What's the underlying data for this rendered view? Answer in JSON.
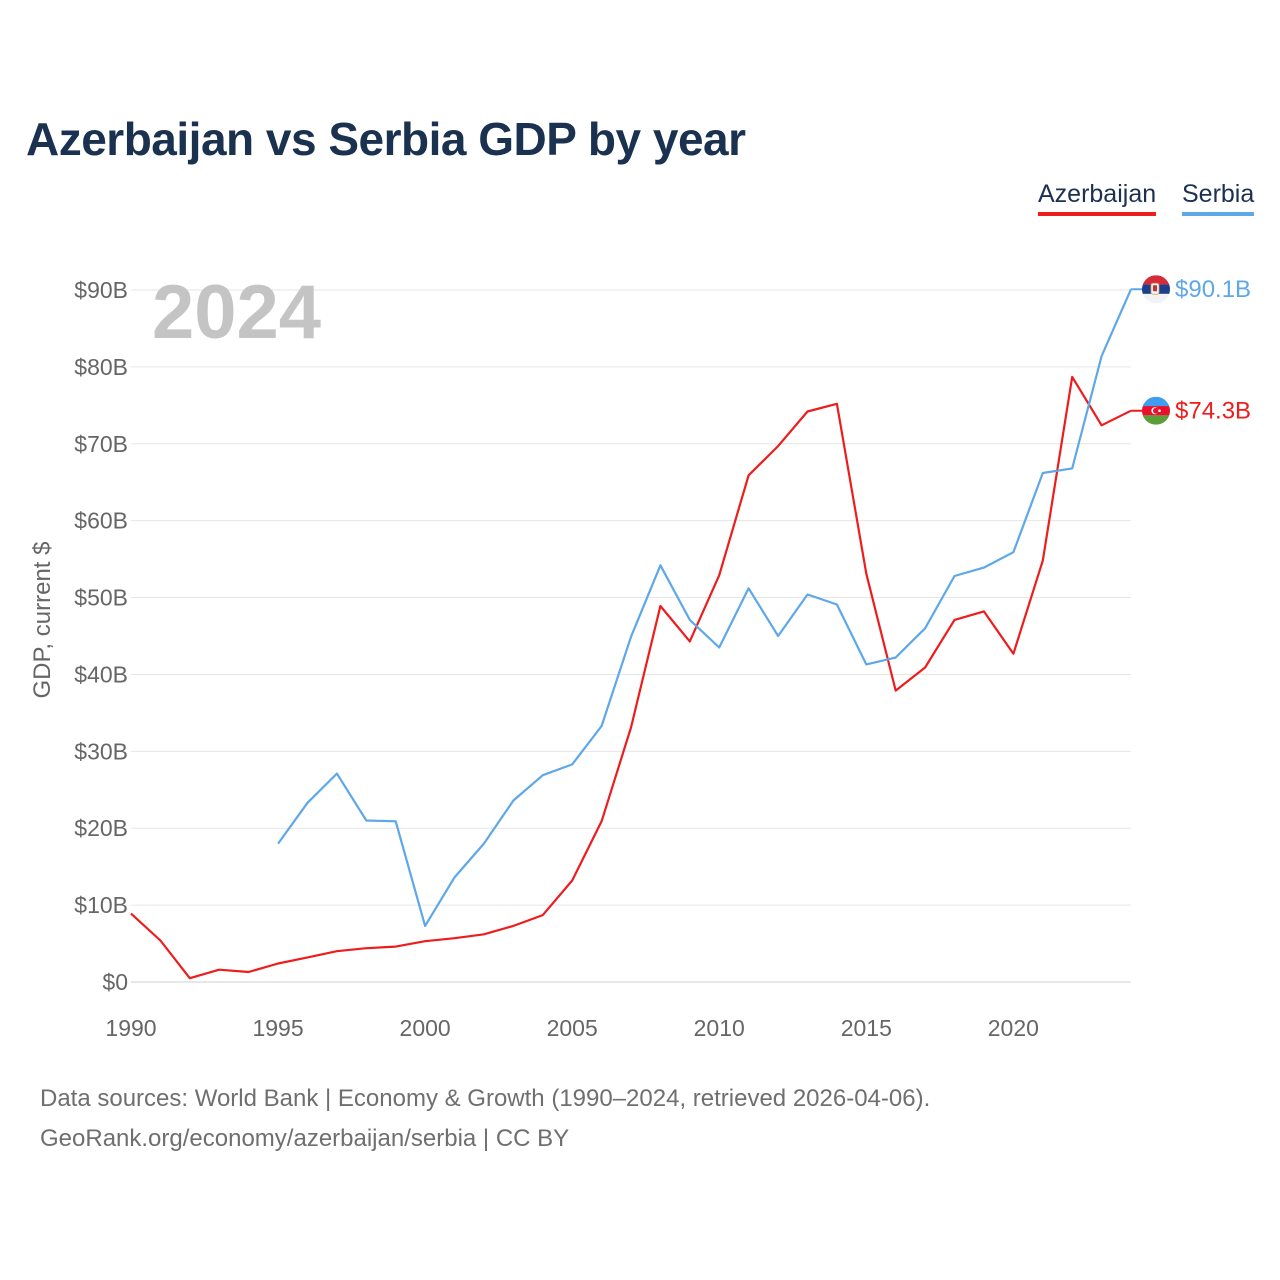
{
  "chart_data": {
    "type": "line",
    "title": "Azerbaijan vs Serbia GDP by year",
    "ylabel": "GDP, current $",
    "xlabel": "",
    "year_watermark": "2024",
    "x_ticks": [
      1990,
      1995,
      2000,
      2005,
      2010,
      2015,
      2020
    ],
    "x_tick_labels": [
      "1990",
      "1995",
      "2000",
      "2005",
      "2010",
      "2015",
      "2020"
    ],
    "y_ticks": [
      0,
      10,
      20,
      30,
      40,
      50,
      60,
      70,
      80,
      90
    ],
    "y_tick_labels": [
      "$0",
      "$10B",
      "$20B",
      "$30B",
      "$40B",
      "$50B",
      "$60B",
      "$70B",
      "$80B",
      "$90B"
    ],
    "xlim": [
      1990,
      2024
    ],
    "ylim": [
      0,
      90
    ],
    "series": [
      {
        "name": "Azerbaijan",
        "color": "#ee1c1c",
        "end_label": "$74.3B",
        "flag": "azerbaijan-flag",
        "x": [
          1990,
          1991,
          1992,
          1993,
          1994,
          1995,
          1996,
          1997,
          1998,
          1999,
          2000,
          2001,
          2002,
          2003,
          2004,
          2005,
          2006,
          2007,
          2008,
          2009,
          2010,
          2011,
          2012,
          2013,
          2014,
          2015,
          2016,
          2017,
          2018,
          2019,
          2020,
          2021,
          2022,
          2023,
          2024
        ],
        "values": [
          8.9,
          5.4,
          0.5,
          1.6,
          1.3,
          2.4,
          3.2,
          4.0,
          4.4,
          4.6,
          5.3,
          5.7,
          6.2,
          7.3,
          8.7,
          13.2,
          20.9,
          33.1,
          48.9,
          44.3,
          52.9,
          65.9,
          69.7,
          74.2,
          75.2,
          53.1,
          37.9,
          40.9,
          47.1,
          48.2,
          42.7,
          54.8,
          78.7,
          72.4,
          74.3
        ]
      },
      {
        "name": "Serbia",
        "color": "#5ea7e8",
        "end_label": "$90.1B",
        "flag": "serbia-flag",
        "x": [
          1995,
          1996,
          1997,
          1998,
          1999,
          2000,
          2001,
          2002,
          2003,
          2004,
          2005,
          2006,
          2007,
          2008,
          2009,
          2010,
          2011,
          2012,
          2013,
          2014,
          2015,
          2016,
          2017,
          2018,
          2019,
          2020,
          2021,
          2022,
          2023,
          2024
        ],
        "values": [
          18.0,
          23.3,
          27.1,
          21.0,
          20.9,
          7.3,
          13.6,
          18.0,
          23.6,
          26.9,
          28.3,
          33.3,
          44.9,
          54.2,
          47.1,
          43.5,
          51.2,
          45.0,
          50.4,
          49.1,
          41.3,
          42.2,
          46.0,
          52.8,
          53.9,
          55.9,
          66.2,
          66.8,
          81.4,
          90.1
        ]
      }
    ]
  },
  "legend": {
    "azerbaijan": "Azerbaijan",
    "serbia": "Serbia"
  },
  "source": {
    "line1": "Data sources: World Bank | Economy & Growth (1990–2024, retrieved 2026-04-06).",
    "line2": "GeoRank.org/economy/azerbaijan/serbia | CC BY"
  }
}
